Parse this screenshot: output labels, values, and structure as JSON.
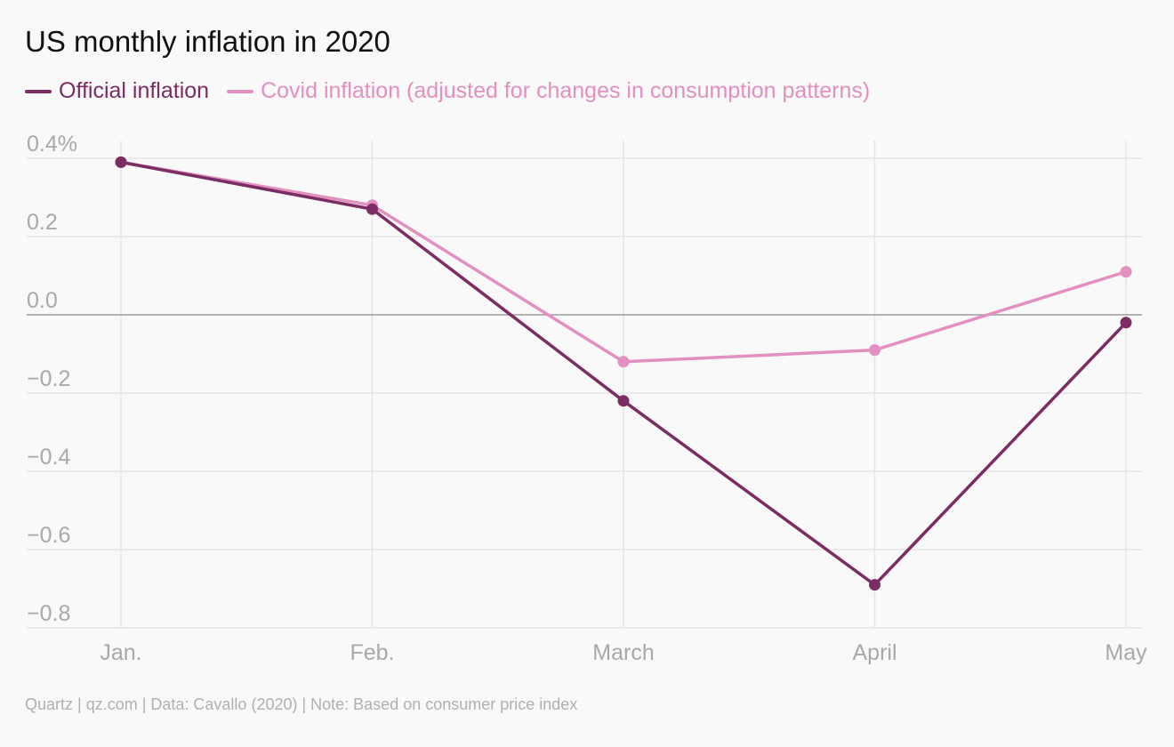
{
  "title": "US monthly inflation in 2020",
  "footer": "Quartz | qz.com | Data: Cavallo (2020) | Note: Based on consumer price index",
  "colors": {
    "official": "#7b2d63",
    "covid": "#e38fc0",
    "grid": "#e6e6e6",
    "zero": "#9c9c9c"
  },
  "chart_data": {
    "type": "line",
    "categories": [
      "Jan.",
      "Feb.",
      "March",
      "April",
      "May"
    ],
    "series": [
      {
        "name": "Official inflation",
        "values": [
          0.39,
          0.27,
          -0.22,
          -0.69,
          -0.02
        ]
      },
      {
        "name": "Covid inflation (adjusted for changes in consumption patterns)",
        "values": [
          0.39,
          0.28,
          -0.12,
          -0.09,
          0.11
        ]
      }
    ],
    "y_ticks": [
      0.4,
      0.2,
      0.0,
      -0.2,
      -0.4,
      -0.6,
      -0.8
    ],
    "y_tick_labels": [
      "0.4%",
      "0.2",
      "0.0",
      "−0.2",
      "−0.4",
      "−0.6",
      "−0.8"
    ],
    "ylim": [
      -0.8,
      0.4
    ],
    "grid": true,
    "legend_position": "top-left"
  }
}
